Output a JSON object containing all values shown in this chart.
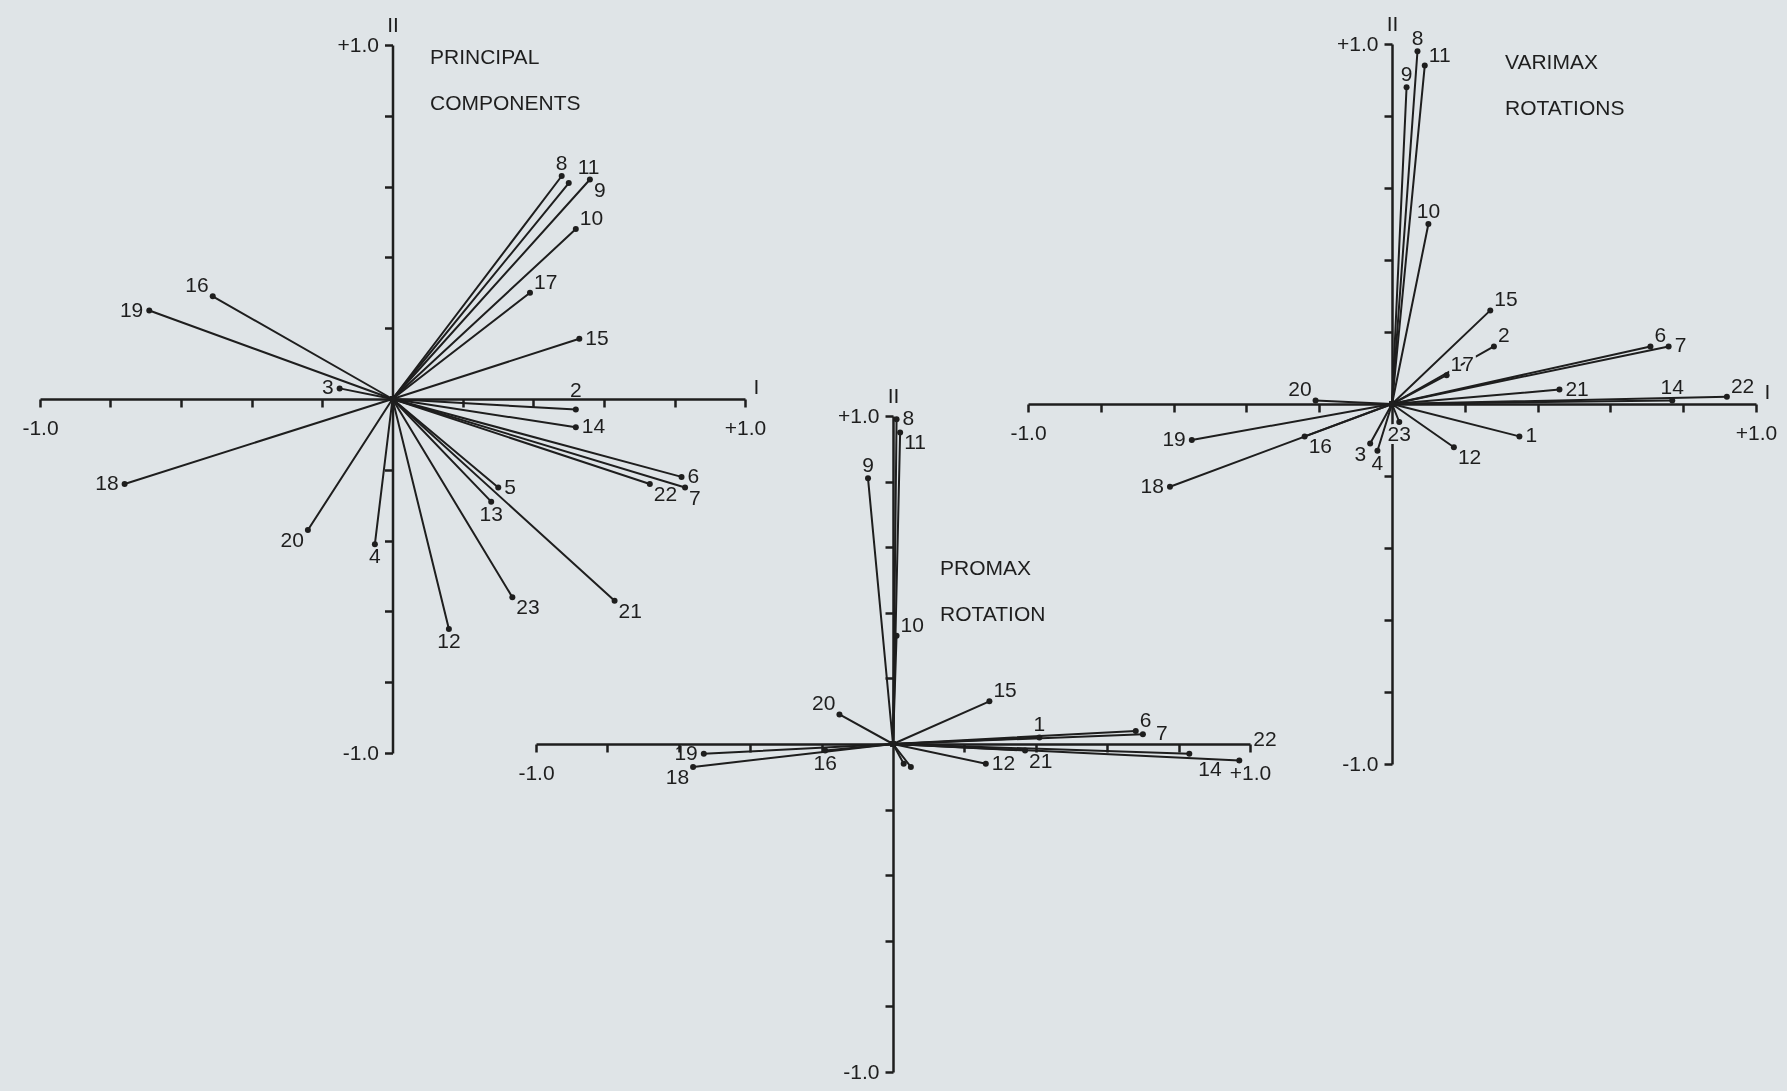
{
  "chart_data": [
    {
      "type": "line",
      "title": "PRINCIPAL COMPONENTS",
      "xlabel": "I",
      "ylabel": "II",
      "xlim": [
        -1,
        1
      ],
      "ylim": [
        -1,
        1
      ],
      "xticks": [
        {
          "value": -1,
          "label": "-1.0"
        },
        {
          "value": -0.8,
          "label": null
        },
        {
          "value": -0.6,
          "label": null
        },
        {
          "value": -0.4,
          "label": null
        },
        {
          "value": -0.2,
          "label": null
        },
        {
          "value": 0.2,
          "label": null
        },
        {
          "value": 0.4,
          "label": null
        },
        {
          "value": 0.6,
          "label": null
        },
        {
          "value": 0.8,
          "label": null
        },
        {
          "value": 1,
          "label": "+1.0"
        }
      ],
      "yticks": [
        {
          "value": -1,
          "label": "-1.0"
        },
        {
          "value": -0.8,
          "label": null
        },
        {
          "value": -0.6,
          "label": null
        },
        {
          "value": -0.4,
          "label": null
        },
        {
          "value": -0.2,
          "label": null
        },
        {
          "value": 0.2,
          "label": null
        },
        {
          "value": 0.4,
          "label": null
        },
        {
          "value": 0.6,
          "label": null
        },
        {
          "value": 0.8,
          "label": null
        },
        {
          "value": 1,
          "label": "+1.0"
        }
      ],
      "marker": "circle",
      "series": [
        {
          "name": "8",
          "color": "#1e1e1e",
          "x": [
            0,
            0.48
          ],
          "values": [
            0,
            0.63
          ]
        },
        {
          "name": "11",
          "color": "#1e1e1e",
          "x": [
            0,
            0.5
          ],
          "values": [
            0,
            0.61
          ]
        },
        {
          "name": "9",
          "color": "#1e1e1e",
          "x": [
            0,
            0.56
          ],
          "values": [
            0,
            0.62
          ]
        },
        {
          "name": "10",
          "color": "#1e1e1e",
          "x": [
            0,
            0.52
          ],
          "values": [
            0,
            0.48
          ]
        },
        {
          "name": "17",
          "color": "#1e1e1e",
          "x": [
            0,
            0.39
          ],
          "values": [
            0,
            0.3
          ]
        },
        {
          "name": "15",
          "color": "#1e1e1e",
          "x": [
            0,
            0.53
          ],
          "values": [
            0,
            0.17
          ]
        },
        {
          "name": "2",
          "color": "#1e1e1e",
          "x": [
            0,
            0.52
          ],
          "values": [
            0,
            -0.03
          ]
        },
        {
          "name": "14",
          "color": "#1e1e1e",
          "x": [
            0,
            0.52
          ],
          "values": [
            0,
            -0.08
          ]
        },
        {
          "name": "6",
          "color": "#1e1e1e",
          "x": [
            0,
            0.82
          ],
          "values": [
            0,
            -0.22
          ]
        },
        {
          "name": "7",
          "color": "#1e1e1e",
          "x": [
            0,
            0.83
          ],
          "values": [
            0,
            -0.25
          ]
        },
        {
          "name": "22",
          "color": "#1e1e1e",
          "x": [
            0,
            0.73
          ],
          "values": [
            0,
            -0.24
          ]
        },
        {
          "name": "5",
          "color": "#1e1e1e",
          "x": [
            0,
            0.3
          ],
          "values": [
            0,
            -0.25
          ]
        },
        {
          "name": "13",
          "color": "#1e1e1e",
          "x": [
            0,
            0.28
          ],
          "values": [
            0,
            -0.29
          ]
        },
        {
          "name": "21",
          "color": "#1e1e1e",
          "x": [
            0,
            0.63
          ],
          "values": [
            0,
            -0.57
          ]
        },
        {
          "name": "23",
          "color": "#1e1e1e",
          "x": [
            0,
            0.34
          ],
          "values": [
            0,
            -0.56
          ]
        },
        {
          "name": "12",
          "color": "#1e1e1e",
          "x": [
            0,
            0.16
          ],
          "values": [
            0,
            -0.65
          ]
        },
        {
          "name": "4",
          "color": "#1e1e1e",
          "x": [
            0,
            -0.05
          ],
          "values": [
            0,
            -0.41
          ]
        },
        {
          "name": "20",
          "color": "#1e1e1e",
          "x": [
            0,
            -0.24
          ],
          "values": [
            0,
            -0.37
          ]
        },
        {
          "name": "18",
          "color": "#1e1e1e",
          "x": [
            0,
            -0.76
          ],
          "values": [
            0,
            -0.24
          ]
        },
        {
          "name": "3",
          "color": "#1e1e1e",
          "x": [
            0,
            -0.15
          ],
          "values": [
            0,
            0.03
          ]
        },
        {
          "name": "19",
          "color": "#1e1e1e",
          "x": [
            0,
            -0.69
          ],
          "values": [
            0,
            0.25
          ]
        },
        {
          "name": "16",
          "color": "#1e1e1e",
          "x": [
            0,
            -0.51
          ],
          "values": [
            0,
            0.29
          ]
        }
      ]
    },
    {
      "type": "line",
      "title": "VARIMAX ROTATIONS",
      "xlabel": "I",
      "ylabel": "II",
      "xlim": [
        -1,
        1
      ],
      "ylim": [
        -1,
        1
      ],
      "xticks": [
        {
          "value": -1,
          "label": "-1.0"
        },
        {
          "value": -0.8,
          "label": null
        },
        {
          "value": -0.6,
          "label": null
        },
        {
          "value": -0.4,
          "label": null
        },
        {
          "value": -0.2,
          "label": null
        },
        {
          "value": 0.2,
          "label": null
        },
        {
          "value": 0.4,
          "label": null
        },
        {
          "value": 0.6,
          "label": null
        },
        {
          "value": 0.8,
          "label": null
        },
        {
          "value": 1,
          "label": "+1.0"
        }
      ],
      "yticks": [
        {
          "value": -1,
          "label": "-1.0"
        },
        {
          "value": -0.8,
          "label": null
        },
        {
          "value": -0.6,
          "label": null
        },
        {
          "value": -0.4,
          "label": null
        },
        {
          "value": -0.2,
          "label": null
        },
        {
          "value": 0.2,
          "label": null
        },
        {
          "value": 0.4,
          "label": null
        },
        {
          "value": 0.6,
          "label": null
        },
        {
          "value": 0.8,
          "label": null
        },
        {
          "value": 1,
          "label": "+1.0"
        }
      ],
      "marker": "circle",
      "series": [
        {
          "name": "9",
          "color": "#1e1e1e",
          "x": [
            0,
            0.04
          ],
          "values": [
            0,
            0.88
          ]
        },
        {
          "name": "8",
          "color": "#1e1e1e",
          "x": [
            0,
            0.07
          ],
          "values": [
            0,
            0.98
          ]
        },
        {
          "name": "11",
          "color": "#1e1e1e",
          "x": [
            0,
            0.09
          ],
          "values": [
            0,
            0.94
          ]
        },
        {
          "name": "10",
          "color": "#1e1e1e",
          "x": [
            0,
            0.1
          ],
          "values": [
            0,
            0.5
          ]
        },
        {
          "name": "15",
          "color": "#1e1e1e",
          "x": [
            0,
            0.27
          ],
          "values": [
            0,
            0.26
          ]
        },
        {
          "name": "2",
          "color": "#1e1e1e",
          "x": [
            0,
            0.28
          ],
          "values": [
            0,
            0.16
          ]
        },
        {
          "name": "17",
          "color": "#1e1e1e",
          "x": [
            0,
            0.15
          ],
          "values": [
            0,
            0.08
          ]
        },
        {
          "name": "6",
          "color": "#1e1e1e",
          "x": [
            0,
            0.71
          ],
          "values": [
            0,
            0.16
          ]
        },
        {
          "name": "7",
          "color": "#1e1e1e",
          "x": [
            0,
            0.76
          ],
          "values": [
            0,
            0.16
          ]
        },
        {
          "name": "21",
          "color": "#1e1e1e",
          "x": [
            0,
            0.46
          ],
          "values": [
            0,
            0.04
          ]
        },
        {
          "name": "14",
          "color": "#1e1e1e",
          "x": [
            0,
            0.77
          ],
          "values": [
            0,
            0.01
          ]
        },
        {
          "name": "22",
          "color": "#1e1e1e",
          "x": [
            0,
            0.92
          ],
          "values": [
            0,
            0.02
          ]
        },
        {
          "name": "20",
          "color": "#1e1e1e",
          "x": [
            0,
            -0.21
          ],
          "values": [
            0,
            0.01
          ]
        },
        {
          "name": "19",
          "color": "#1e1e1e",
          "x": [
            0,
            -0.55
          ],
          "values": [
            0,
            -0.1
          ]
        },
        {
          "name": "16",
          "color": "#1e1e1e",
          "x": [
            0,
            -0.24
          ],
          "values": [
            0,
            -0.09
          ]
        },
        {
          "name": "18",
          "color": "#1e1e1e",
          "x": [
            0,
            -0.61
          ],
          "values": [
            0,
            -0.23
          ]
        },
        {
          "name": "3",
          "color": "#1e1e1e",
          "x": [
            0,
            -0.06
          ],
          "values": [
            0,
            -0.11
          ]
        },
        {
          "name": "4",
          "color": "#1e1e1e",
          "x": [
            0,
            -0.04
          ],
          "values": [
            0,
            -0.13
          ]
        },
        {
          "name": "23",
          "color": "#1e1e1e",
          "x": [
            0,
            0.02
          ],
          "values": [
            0,
            -0.05
          ]
        },
        {
          "name": "12",
          "color": "#1e1e1e",
          "x": [
            0,
            0.17
          ],
          "values": [
            0,
            -0.12
          ]
        },
        {
          "name": "1",
          "color": "#1e1e1e",
          "x": [
            0,
            0.35
          ],
          "values": [
            0,
            -0.09
          ]
        }
      ]
    },
    {
      "type": "line",
      "title": "PROMAX ROTATION",
      "ylabel": "II",
      "xlim": [
        -1,
        1
      ],
      "ylim": [
        -1,
        1
      ],
      "xticks": [
        {
          "value": -1,
          "label": "-1.0"
        },
        {
          "value": -0.8,
          "label": null
        },
        {
          "value": -0.6,
          "label": null
        },
        {
          "value": -0.4,
          "label": null
        },
        {
          "value": -0.2,
          "label": null
        },
        {
          "value": 0.2,
          "label": null
        },
        {
          "value": 0.4,
          "label": null
        },
        {
          "value": 0.6,
          "label": null
        },
        {
          "value": 0.8,
          "label": null
        },
        {
          "value": 1,
          "label": "+1.0"
        }
      ],
      "yticks": [
        {
          "value": -1,
          "label": "-1.0"
        },
        {
          "value": -0.8,
          "label": null
        },
        {
          "value": -0.6,
          "label": null
        },
        {
          "value": -0.4,
          "label": null
        },
        {
          "value": -0.2,
          "label": null
        },
        {
          "value": 0.2,
          "label": null
        },
        {
          "value": 0.4,
          "label": null
        },
        {
          "value": 0.6,
          "label": null
        },
        {
          "value": 0.8,
          "label": null
        },
        {
          "value": 1,
          "label": "+1.0"
        }
      ],
      "marker": "circle",
      "series": [
        {
          "name": "8",
          "color": "#1e1e1e",
          "x": [
            0,
            0.01
          ],
          "values": [
            0,
            0.99
          ]
        },
        {
          "name": "11",
          "color": "#1e1e1e",
          "x": [
            0,
            0.02
          ],
          "values": [
            0,
            0.95
          ]
        },
        {
          "name": "9",
          "color": "#1e1e1e",
          "x": [
            0,
            -0.07
          ],
          "values": [
            0,
            0.81
          ]
        },
        {
          "name": "10",
          "color": "#1e1e1e",
          "x": [
            0,
            0.01
          ],
          "values": [
            0,
            0.33
          ]
        },
        {
          "name": "15",
          "color": "#1e1e1e",
          "x": [
            0,
            0.27
          ],
          "values": [
            0,
            0.13
          ]
        },
        {
          "name": "20",
          "color": "#1e1e1e",
          "x": [
            0,
            -0.15
          ],
          "values": [
            0,
            0.09
          ]
        },
        {
          "name": "6",
          "color": "#1e1e1e",
          "x": [
            0,
            0.68
          ],
          "values": [
            0,
            0.04
          ]
        },
        {
          "name": "7",
          "color": "#1e1e1e",
          "x": [
            0,
            0.7
          ],
          "values": [
            0,
            0.03
          ]
        },
        {
          "name": "1",
          "color": "#1e1e1e",
          "x": [
            0,
            0.41
          ],
          "values": [
            0,
            0.02
          ]
        },
        {
          "name": "14",
          "color": "#1e1e1e",
          "x": [
            0,
            0.83
          ],
          "values": [
            0,
            -0.03
          ]
        },
        {
          "name": "22",
          "color": "#1e1e1e",
          "x": [
            0,
            0.97
          ],
          "values": [
            0,
            -0.05
          ]
        },
        {
          "name": "21",
          "color": "#1e1e1e",
          "x": [
            0,
            0.37
          ],
          "values": [
            0,
            -0.02
          ]
        },
        {
          "name": "12",
          "color": "#1e1e1e",
          "x": [
            0,
            0.26
          ],
          "values": [
            0,
            -0.06
          ]
        },
        {
          "name": "19",
          "color": "#1e1e1e",
          "x": [
            0,
            -0.53
          ],
          "values": [
            0,
            -0.03
          ]
        },
        {
          "name": "18",
          "color": "#1e1e1e",
          "x": [
            0,
            -0.56
          ],
          "values": [
            0,
            -0.07
          ]
        },
        {
          "name": "16",
          "color": "#1e1e1e",
          "x": [
            0,
            -0.19
          ],
          "values": [
            0,
            -0.02
          ]
        },
        {
          "color": "#1e1e1e",
          "x": [
            0,
            0.03
          ],
          "values": [
            0,
            -0.06
          ]
        },
        {
          "color": "#1e1e1e",
          "x": [
            0,
            0.05
          ],
          "values": [
            0,
            -0.07
          ]
        }
      ]
    }
  ]
}
